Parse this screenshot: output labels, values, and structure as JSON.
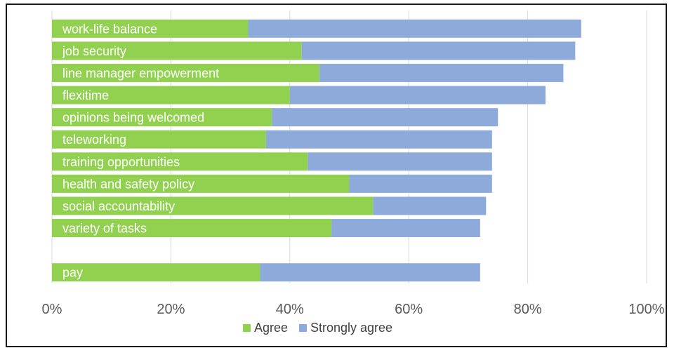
{
  "chart_data": {
    "type": "bar",
    "orientation": "horizontal",
    "stacked": true,
    "categories": [
      "work-life balance",
      "job security",
      "line manager empowerment",
      "flexitime",
      "opinions being welcomed",
      "teleworking",
      "training opportunities",
      "health and safety policy",
      "social accountability",
      "variety of tasks",
      "",
      "pay"
    ],
    "series": [
      {
        "name": "Agree",
        "color": "#92d050",
        "values": [
          33,
          42,
          45,
          40,
          37,
          36,
          43,
          50,
          54,
          47,
          null,
          35
        ]
      },
      {
        "name": "Strongly agree",
        "color": "#8eaadb",
        "values": [
          56,
          46,
          41,
          43,
          38,
          38,
          31,
          24,
          19,
          25,
          null,
          37
        ]
      }
    ],
    "xlim": [
      0,
      100
    ],
    "x_ticks": [
      "0%",
      "20%",
      "40%",
      "60%",
      "80%",
      "100%"
    ],
    "grid": true,
    "legend_position": "bottom"
  }
}
